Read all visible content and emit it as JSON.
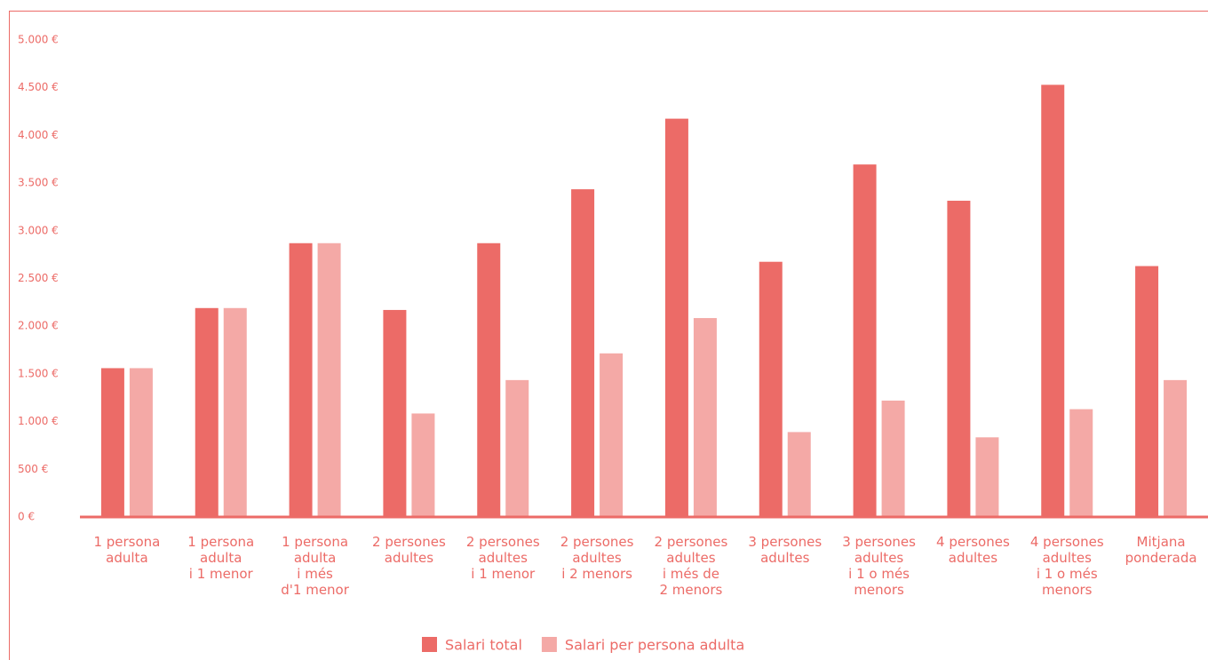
{
  "chart_data": {
    "type": "bar",
    "categories": [
      "1 persona\nadulta",
      "1 persona\nadulta\ni 1 menor",
      "1 persona\nadulta\ni més\nd'1 menor",
      "2 persones\nadultes",
      "2 persones\nadultes\ni 1 menor",
      "2 persones\nadultes\ni 2 menors",
      "2 persones\nadultes\ni més de\n2 menors",
      "3 persones\nadultes",
      "3 persones\nadultes\ni 1 o més\nmenors",
      "4 persones\nadultes",
      "4 persones\nadultes\ni 1 o més\nmenors",
      "Mitjana\nponderada"
    ],
    "series": [
      {
        "name": "Salari total",
        "color": "#ec6b67",
        "values": [
          1560,
          2190,
          2870,
          2170,
          2870,
          3435,
          4175,
          2675,
          3695,
          3315,
          4530,
          2630
        ]
      },
      {
        "name": "Salari per persona adulta",
        "color": "#f4a9a6",
        "values": [
          1560,
          2190,
          2870,
          1085,
          1435,
          1715,
          2085,
          890,
          1220,
          835,
          1130,
          1435
        ]
      }
    ],
    "ylim": [
      0,
      5000
    ],
    "yticks": [
      {
        "value": 0,
        "label": "0 €"
      },
      {
        "value": 500,
        "label": "500 €"
      },
      {
        "value": 1000,
        "label": "1.000 €"
      },
      {
        "value": 1500,
        "label": "1.500 €"
      },
      {
        "value": 2000,
        "label": "2.000 €"
      },
      {
        "value": 2500,
        "label": "2.500 €"
      },
      {
        "value": 3000,
        "label": "3.000 €"
      },
      {
        "value": 3500,
        "label": "3.500 €"
      },
      {
        "value": 4000,
        "label": "4.000 €"
      },
      {
        "value": 4500,
        "label": "4.500 €"
      },
      {
        "value": 5000,
        "label": "5.000 €"
      }
    ],
    "grid": false
  }
}
